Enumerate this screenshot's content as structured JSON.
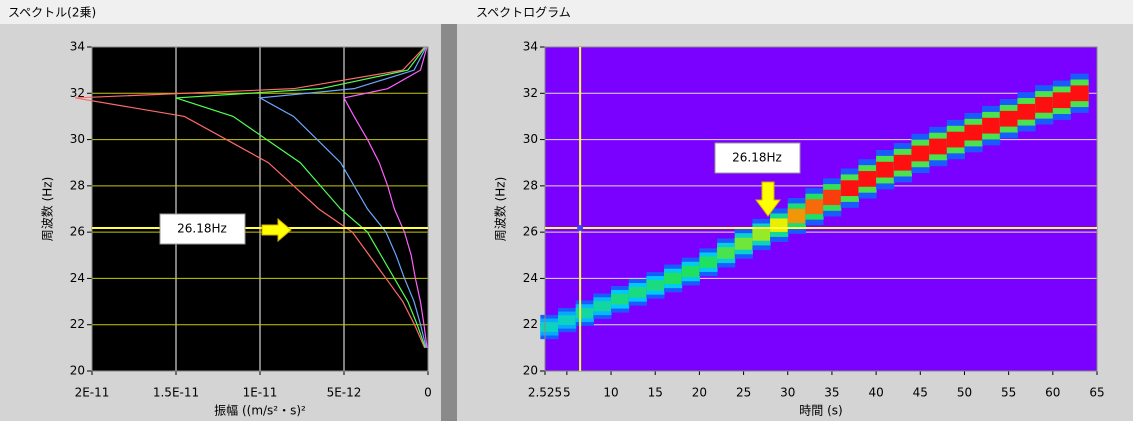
{
  "chart_data": [
    {
      "type": "line",
      "orientation": "horizontal",
      "title": "スペクトル(2乗)",
      "ylabel": "周波数 (Hz)",
      "xlabel": "振幅 ((m/s²・s)²",
      "xlim": [
        2e-11,
        0
      ],
      "xticks": [
        {
          "value": 2e-11,
          "label": "2E-11"
        },
        {
          "value": 1.5e-11,
          "label": "1.5E-11"
        },
        {
          "value": 1e-11,
          "label": "1E-11"
        },
        {
          "value": 5e-12,
          "label": "5E-12"
        },
        0
      ],
      "ylim": [
        20,
        34
      ],
      "yticks": [
        20,
        22,
        24,
        26,
        28,
        30,
        32,
        34
      ],
      "grid": true,
      "background": "#000000",
      "cursor_y": 26.18,
      "annotation": "26.18Hz",
      "x": [
        21,
        22,
        23,
        24,
        25,
        26,
        27,
        28,
        29,
        30,
        31,
        31.8,
        32.2,
        33,
        34
      ],
      "series": [
        {
          "color": "#ff6a6a",
          "values": [
            2e-13,
            8e-13,
            1.5e-12,
            2.5e-12,
            3.5e-12,
            4.5e-12,
            6.5e-12,
            8e-12,
            9.5e-12,
            1.2e-11,
            1.45e-11,
            2.1e-11,
            8e-12,
            1.5e-12,
            2e-13
          ]
        },
        {
          "color": "#50ff50",
          "values": [
            1.6e-13,
            6.4e-13,
            1.2e-12,
            2e-12,
            2.8e-12,
            3.6e-12,
            5.2e-12,
            6.4e-12,
            7.6e-12,
            9.6e-12,
            1.16e-11,
            1.5e-11,
            6.4e-12,
            1.2e-12,
            1.6e-13
          ]
        },
        {
          "color": "#6aa8ff",
          "values": [
            1.1e-13,
            4.4e-13,
            8.3e-13,
            1.4e-12,
            1.9e-12,
            2.5e-12,
            3.6e-12,
            4.4e-12,
            5.2e-12,
            6.6e-12,
            8e-12,
            1e-11,
            4.4e-12,
            8.3e-13,
            1.1e-13
          ]
        },
        {
          "color": "#ff60ff",
          "values": [
            6e-14,
            2.4e-13,
            4.5e-13,
            7.5e-13,
            1e-12,
            1.4e-12,
            2e-12,
            2.4e-12,
            2.9e-12,
            3.6e-12,
            4.4e-12,
            5e-12,
            2.4e-12,
            4.5e-13,
            6e-14
          ]
        }
      ]
    },
    {
      "type": "heatmap",
      "title": "スペクトログラム",
      "ylabel": "周波数 (Hz)",
      "xlabel": "時間 (s)",
      "xlim": [
        2.525,
        65
      ],
      "xticks": [
        2.525,
        5,
        10,
        15,
        20,
        25,
        30,
        35,
        40,
        45,
        50,
        55,
        60,
        65
      ],
      "ylim": [
        20,
        34
      ],
      "yticks": [
        20,
        22,
        24,
        26,
        28,
        30,
        32,
        34
      ],
      "grid": true,
      "background": "#7a00ff",
      "cursor_x": 6.5,
      "cursor_y": 26.18,
      "annotation": "26.18Hz",
      "color_scale": [
        "#2040ff",
        "#00c8ff",
        "#20e060",
        "#e8f000",
        "#ff1010"
      ],
      "x": [
        3,
        5,
        7,
        9,
        11,
        13,
        15,
        17,
        19,
        21,
        23,
        25,
        27,
        29,
        31,
        33,
        35,
        37,
        39,
        41,
        43,
        45,
        47,
        49,
        51,
        53,
        55,
        57,
        59,
        61,
        63
      ],
      "values": [
        21.9,
        22.2,
        22.5,
        22.8,
        23.1,
        23.4,
        23.7,
        24.0,
        24.3,
        24.7,
        25.1,
        25.5,
        25.9,
        26.3,
        26.7,
        27.1,
        27.5,
        27.9,
        28.3,
        28.7,
        29.0,
        29.4,
        29.7,
        30.0,
        30.3,
        30.6,
        30.9,
        31.2,
        31.5,
        31.7,
        32.0
      ],
      "intensity": [
        0.35,
        0.35,
        0.4,
        0.4,
        0.45,
        0.45,
        0.45,
        0.5,
        0.5,
        0.5,
        0.55,
        0.6,
        0.65,
        0.75,
        0.85,
        0.9,
        0.95,
        1,
        1,
        1,
        1,
        1,
        1,
        1,
        1,
        1,
        1,
        1,
        1,
        1,
        1
      ]
    }
  ]
}
